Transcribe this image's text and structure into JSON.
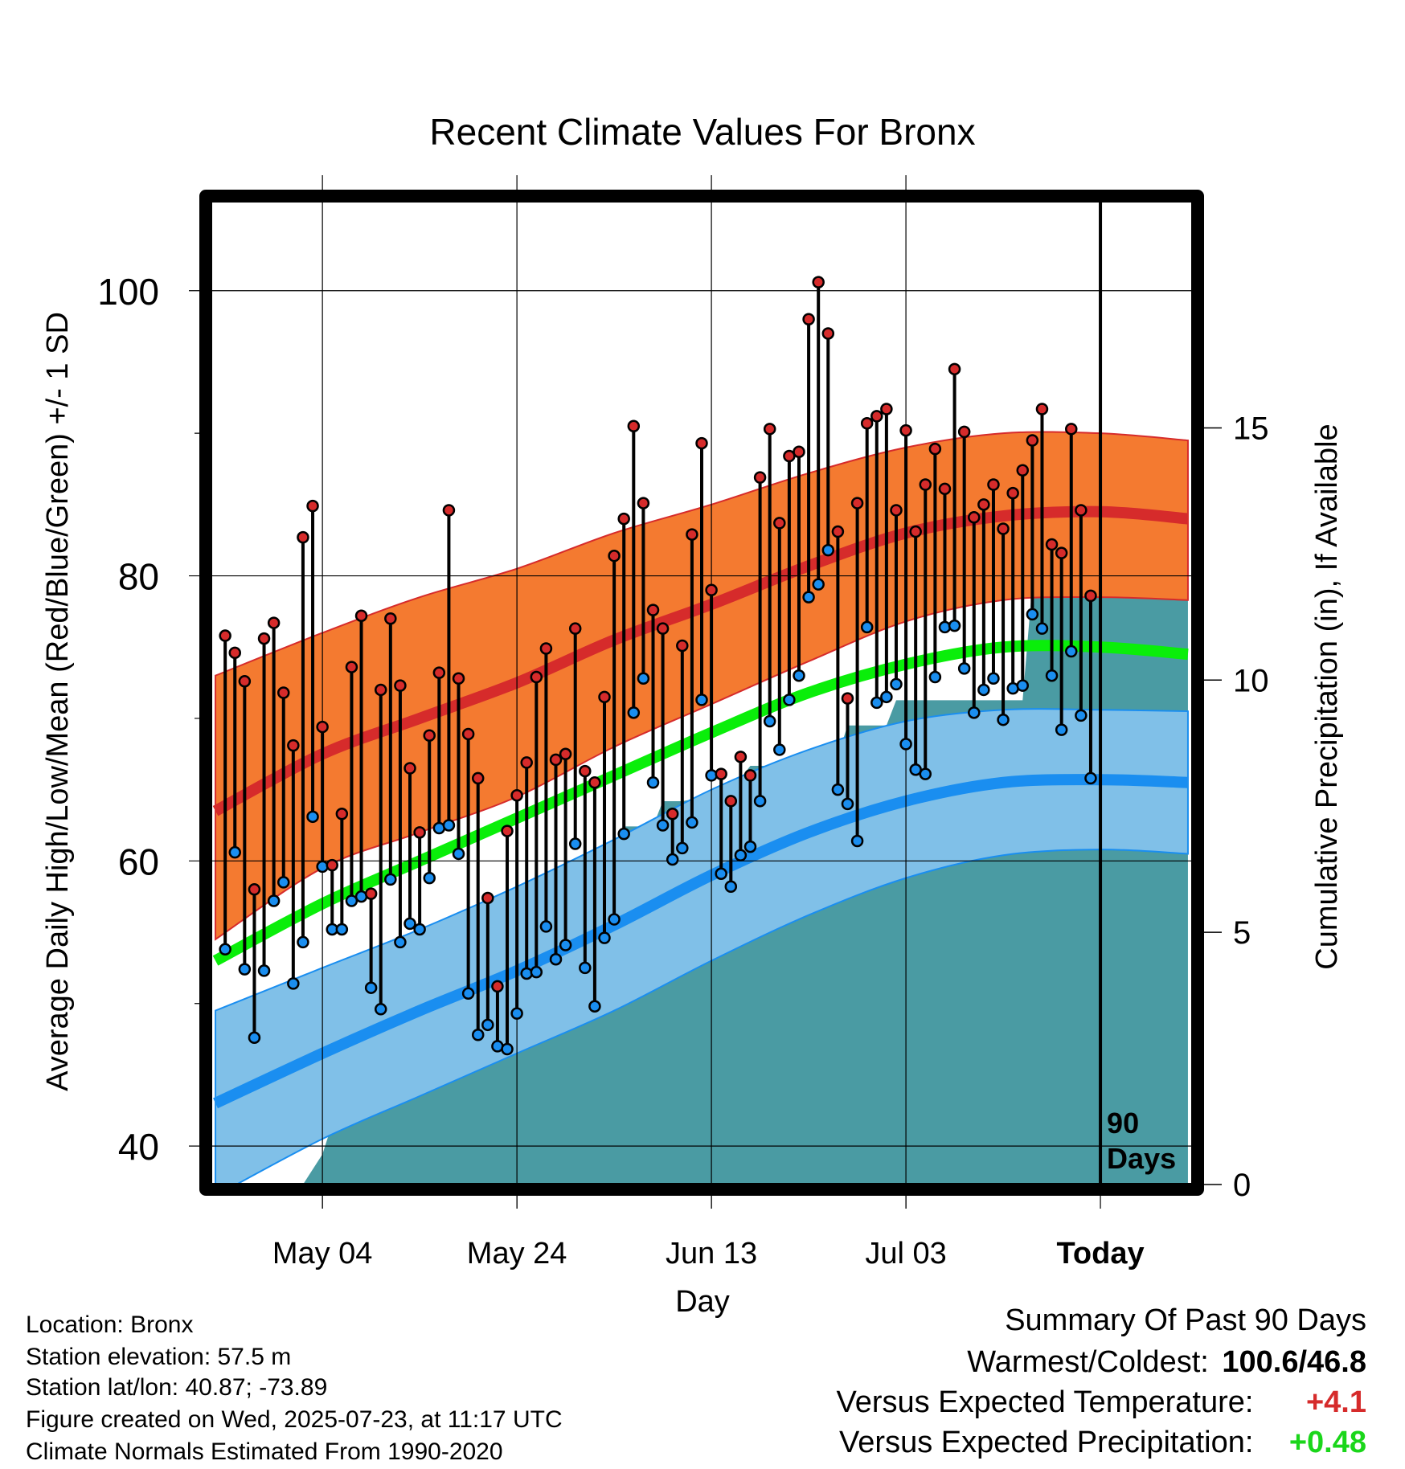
{
  "chart_data": {
    "type": "line",
    "title": "Recent Climate Values For Bronx",
    "xlabel": "Day",
    "ylabel_left": "Average Daily High/Low/Mean (Red/Blue/Green) +/- 1 SD",
    "ylabel_right": "Cumulative Precipitation (in), If Available",
    "x_tick_labels": [
      "May 04",
      "May 24",
      "Jun 13",
      "Jul 03",
      "Today"
    ],
    "x_tick_days": [
      0,
      20,
      40,
      60,
      80
    ],
    "x_range_days": [
      -11.5,
      89.5
    ],
    "y_left_ticks": [
      40,
      60,
      80,
      100
    ],
    "y_left_range": [
      37.3,
      106.3
    ],
    "y_right_ticks": [
      0,
      5,
      10,
      15
    ],
    "y_right_range": [
      0,
      19.5
    ],
    "grid": true,
    "today_marker": {
      "day": 80,
      "label_line1": "90",
      "label_line2": "Days"
    },
    "colors": {
      "high_band": "#f47a30",
      "high_normal": "#d62b2b",
      "mean_normal": "#0aee0a",
      "low_band": "#80c0e8",
      "low_normal": "#1a8ef0",
      "precip": "#4a9ba3",
      "high_marker": "#d62b2b",
      "low_marker": "#1a8ef0"
    },
    "normals": {
      "days": [
        -11,
        0,
        10,
        20,
        30,
        40,
        50,
        60,
        70,
        80,
        89
      ],
      "high_mean": [
        63.5,
        67.5,
        70.0,
        72.5,
        75.5,
        78.0,
        80.7,
        83.0,
        84.2,
        84.5,
        84.0
      ],
      "high_upper": [
        73.0,
        76.0,
        78.5,
        80.5,
        83.0,
        85.0,
        87.2,
        89.0,
        90.0,
        90.0,
        89.5
      ],
      "high_lower": [
        54.5,
        59.5,
        62.0,
        64.5,
        68.0,
        71.0,
        74.0,
        76.8,
        78.3,
        78.5,
        78.3
      ],
      "mean_normal": [
        53.0,
        57.0,
        60.0,
        63.0,
        66.0,
        69.0,
        71.8,
        73.8,
        75.0,
        75.0,
        74.5
      ],
      "low_mean": [
        43.0,
        46.5,
        49.5,
        52.3,
        55.5,
        59.0,
        62.0,
        64.2,
        65.5,
        65.7,
        65.5
      ],
      "low_upper": [
        49.5,
        52.5,
        55.2,
        58.2,
        61.5,
        65.0,
        67.8,
        69.8,
        70.6,
        70.6,
        70.5
      ],
      "low_lower": [
        36.5,
        40.5,
        43.5,
        46.5,
        49.5,
        53.0,
        56.2,
        58.8,
        60.4,
        60.8,
        60.5
      ]
    },
    "daily": {
      "start_day": -10,
      "high": [
        75.8,
        74.6,
        72.6,
        58.0,
        75.6,
        76.7,
        71.8,
        68.1,
        82.7,
        84.9,
        69.4,
        59.7,
        63.3,
        73.6,
        77.2,
        57.7,
        72.0,
        77.0,
        72.3,
        66.5,
        62.0,
        68.8,
        73.2,
        84.6,
        72.8,
        68.9,
        65.8,
        57.4,
        51.2,
        62.1,
        64.6,
        66.9,
        72.9,
        74.9,
        67.1,
        67.5,
        76.3,
        66.3,
        65.5,
        71.5,
        81.4,
        84.0,
        90.5,
        85.1,
        77.6,
        76.3,
        63.3,
        75.1,
        82.9,
        89.3,
        79.0,
        66.1,
        64.2,
        67.3,
        66.0,
        86.9,
        90.3,
        83.7,
        88.4,
        88.7,
        98.0,
        100.6,
        97.0,
        83.1,
        71.4,
        85.1,
        90.7,
        91.2,
        91.7,
        84.6,
        90.2,
        83.1,
        86.4,
        88.9,
        86.1,
        94.5,
        90.1,
        84.1,
        85.0,
        86.4,
        83.3,
        85.8,
        87.4,
        89.5,
        91.7,
        82.2,
        81.6,
        90.3,
        84.6,
        78.6
      ],
      "low": [
        53.8,
        60.6,
        52.4,
        47.6,
        52.3,
        57.2,
        58.5,
        51.4,
        54.3,
        63.1,
        59.6,
        55.2,
        55.2,
        57.2,
        57.5,
        51.1,
        49.6,
        58.7,
        54.3,
        55.6,
        55.2,
        58.8,
        62.3,
        62.5,
        60.5,
        50.7,
        47.8,
        48.5,
        47.0,
        46.8,
        49.3,
        52.1,
        52.2,
        55.4,
        53.1,
        54.1,
        61.2,
        52.5,
        49.8,
        54.6,
        55.9,
        61.9,
        70.4,
        72.8,
        65.5,
        62.5,
        60.1,
        60.9,
        62.7,
        71.3,
        66.0,
        59.1,
        58.2,
        60.4,
        61.0,
        64.2,
        69.8,
        67.8,
        71.3,
        73.0,
        78.5,
        79.4,
        81.8,
        65.0,
        64.0,
        61.4,
        76.4,
        71.1,
        71.5,
        72.4,
        68.2,
        66.4,
        66.1,
        72.9,
        76.4,
        76.5,
        73.5,
        70.4,
        72.0,
        72.8,
        69.9,
        72.1,
        72.3,
        77.3,
        76.3,
        73.0,
        69.2,
        74.7,
        70.2,
        65.8
      ]
    },
    "precip_cumulative": {
      "days": [
        -11,
        -2,
        0,
        1,
        2,
        4,
        5,
        9,
        10,
        13,
        16,
        19,
        20,
        24,
        27,
        30,
        31,
        34,
        35,
        37,
        40,
        42,
        44,
        47,
        51,
        53,
        54,
        55,
        58,
        59,
        61,
        62,
        72,
        73,
        89
      ],
      "values": [
        0,
        0,
        0.6,
        1.2,
        2.1,
        2.3,
        3.3,
        3.4,
        4.2,
        4.3,
        4.6,
        5.5,
        5.6,
        6.1,
        6.4,
        6.4,
        7.1,
        7.1,
        7.6,
        7.6,
        7.7,
        7.8,
        8.3,
        8.3,
        8.5,
        8.5,
        9.1,
        9.1,
        9.1,
        9.6,
        9.6,
        9.6,
        9.6,
        11.9,
        11.9
      ]
    }
  },
  "info": {
    "location": "Location: Bronx",
    "elevation": "Station elevation: 57.5 m",
    "latlon": "Station lat/lon: 40.87; -73.89",
    "created": "Figure created on Wed, 2025-07-23, at 11:17 UTC",
    "normals_period": "Climate Normals Estimated From 1990-2020"
  },
  "summary": {
    "heading": "Summary Of Past 90 Days",
    "warmest_coldest_label": "Warmest/Coldest:",
    "warmest_coldest_value": "100.6/46.8",
    "temp_label": "Versus Expected Temperature:",
    "temp_value": "+4.1",
    "temp_color": "#d62b2b",
    "precip_label": "Versus Expected Precipitation:",
    "precip_value": "+0.48",
    "precip_color": "#1ad61a"
  }
}
